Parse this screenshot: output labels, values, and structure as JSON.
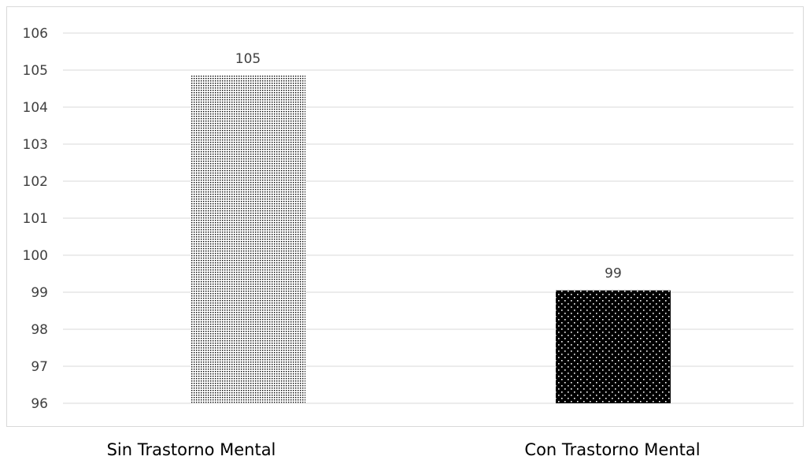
{
  "chart_data": {
    "type": "bar",
    "title": "",
    "xlabel": "",
    "ylabel": "",
    "categories": [
      "Sin Trastorno Mental",
      "Con Trastorno Mental"
    ],
    "values": [
      104.85,
      99.05
    ],
    "data_labels": [
      "105",
      "99"
    ],
    "ylim": [
      96,
      106
    ],
    "yticks": [
      "96",
      "97",
      "98",
      "99",
      "100",
      "101",
      "102",
      "103",
      "104",
      "105",
      "106"
    ],
    "grid": true,
    "legend": "none",
    "bar_fills": [
      "light-dotted-pattern",
      "black-with-white-dots-pattern"
    ]
  },
  "colors": {
    "gridline": "#d9d9d9",
    "border": "#d9d9d9",
    "tick_text": "#404040",
    "bar1_dot": "#000000",
    "bar1_bg": "#ffffff",
    "bar2_bg": "#000000",
    "bar2_dot": "#ffffff"
  }
}
